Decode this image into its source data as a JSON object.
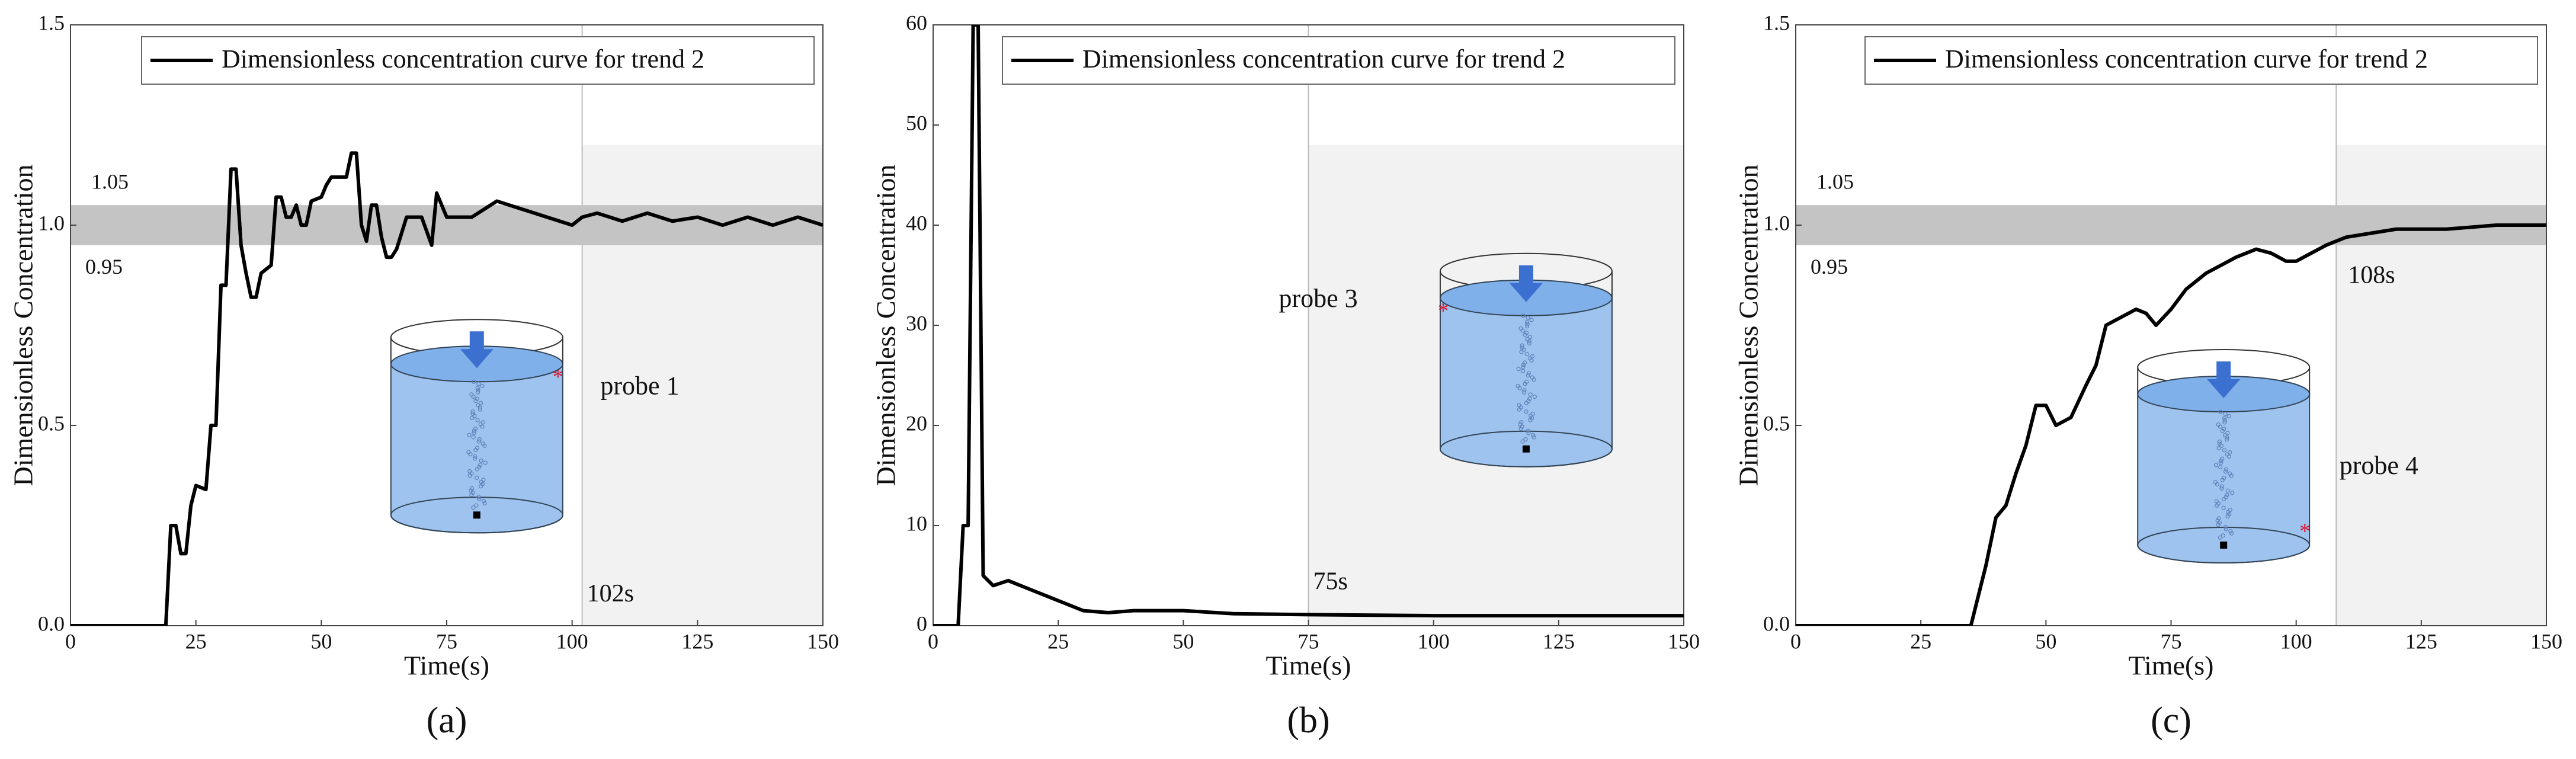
{
  "chart_data": [
    {
      "type": "line",
      "label": "(a)",
      "xlabel": "Time(s)",
      "ylabel": "Dimensionless Concentration",
      "xlim": [
        0,
        150
      ],
      "xticks": [
        0,
        25,
        50,
        75,
        100,
        125,
        150
      ],
      "ylim": [
        0,
        1.5
      ],
      "yticks": [
        {
          "value": 0,
          "label": "0.0"
        },
        0.5,
        {
          "value": 1,
          "label": "1.0"
        },
        1.5
      ],
      "band": [
        0.95,
        1.05
      ],
      "threshold": {
        "value": 102,
        "label": "102s"
      },
      "probe": "probe 1",
      "x": [
        0,
        19,
        20,
        21,
        22,
        23,
        24,
        25,
        27,
        28,
        29,
        30,
        31,
        32,
        33,
        34,
        35,
        36,
        37,
        38,
        40,
        41,
        42,
        43,
        44,
        45,
        46,
        47,
        48,
        50,
        51,
        52,
        55,
        56,
        57,
        58,
        59,
        60,
        61,
        62,
        63,
        64,
        65,
        67,
        70,
        72,
        73,
        75,
        80,
        85,
        90,
        95,
        100,
        102,
        105,
        110,
        115,
        120,
        125,
        130,
        135,
        140,
        145,
        150
      ],
      "series": [
        {
          "name": "Dimensionless concentration curve for trend 2",
          "color": "#000000",
          "values": [
            0,
            0,
            0.25,
            0.25,
            0.18,
            0.18,
            0.3,
            0.35,
            0.34,
            0.5,
            0.5,
            0.85,
            0.85,
            1.14,
            1.14,
            0.95,
            0.88,
            0.82,
            0.82,
            0.88,
            0.9,
            1.07,
            1.07,
            1.02,
            1.02,
            1.05,
            1.0,
            1.0,
            1.06,
            1.07,
            1.1,
            1.12,
            1.12,
            1.18,
            1.18,
            1.0,
            0.96,
            1.05,
            1.05,
            0.97,
            0.92,
            0.92,
            0.94,
            1.02,
            1.02,
            0.95,
            1.08,
            1.02,
            1.02,
            1.06,
            1.04,
            1.02,
            1.0,
            1.02,
            1.03,
            1.01,
            1.03,
            1.01,
            1.02,
            1.0,
            1.02,
            1.0,
            1.02,
            1.0
          ]
        }
      ]
    },
    {
      "type": "line",
      "label": "(b)",
      "xlabel": "Time(s)",
      "ylabel": "Dimensionless Concentration",
      "xlim": [
        0,
        150
      ],
      "xticks": [
        0,
        25,
        50,
        75,
        100,
        125,
        150
      ],
      "ylim": [
        0,
        60
      ],
      "yticks": [
        0,
        10,
        20,
        30,
        40,
        50,
        60
      ],
      "threshold": {
        "value": 75,
        "label": "75s"
      },
      "probe": "probe 3",
      "x": [
        0,
        5,
        6,
        7,
        8,
        9,
        10,
        12,
        15,
        20,
        25,
        30,
        35,
        40,
        50,
        60,
        75,
        100,
        125,
        150
      ],
      "series": [
        {
          "name": "Dimensionless concentration curve for trend 2",
          "color": "#000000",
          "values": [
            0,
            0,
            10,
            10,
            60,
            60,
            5,
            4,
            4.5,
            3.5,
            2.5,
            1.5,
            1.3,
            1.5,
            1.5,
            1.2,
            1.1,
            1.0,
            1.0,
            1.0
          ]
        }
      ]
    },
    {
      "type": "line",
      "label": "(c)",
      "xlabel": "Time(s)",
      "ylabel": "Dimensionless Concentration",
      "xlim": [
        0,
        150
      ],
      "xticks": [
        0,
        25,
        50,
        75,
        100,
        125,
        150
      ],
      "ylim": [
        0,
        1.5
      ],
      "yticks": [
        {
          "value": 0,
          "label": "0.0"
        },
        0.5,
        {
          "value": 1,
          "label": "1.0"
        },
        1.5
      ],
      "band": [
        0.95,
        1.05
      ],
      "threshold": {
        "value": 108,
        "label": "108s"
      },
      "probe": "probe 4",
      "x": [
        0,
        35,
        36,
        38,
        40,
        42,
        44,
        46,
        48,
        50,
        52,
        55,
        58,
        60,
        62,
        65,
        68,
        70,
        72,
        75,
        78,
        82,
        85,
        88,
        92,
        95,
        98,
        100,
        103,
        106,
        110,
        115,
        120,
        130,
        140,
        150
      ],
      "series": [
        {
          "name": "Dimensionless concentration curve for trend 2",
          "color": "#000000",
          "values": [
            0,
            0,
            0.05,
            0.15,
            0.27,
            0.3,
            0.38,
            0.45,
            0.55,
            0.55,
            0.5,
            0.52,
            0.6,
            0.65,
            0.75,
            0.77,
            0.79,
            0.78,
            0.75,
            0.79,
            0.84,
            0.88,
            0.9,
            0.92,
            0.94,
            0.93,
            0.91,
            0.91,
            0.93,
            0.95,
            0.97,
            0.98,
            0.99,
            0.99,
            1.0,
            1.0
          ]
        }
      ]
    }
  ]
}
